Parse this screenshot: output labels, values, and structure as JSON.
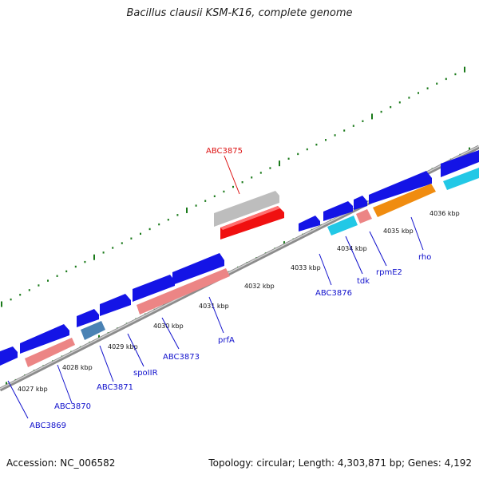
{
  "title": "Bacillus clausii KSM-K16, complete genome",
  "accession": "Accession: NC_006582",
  "summary": "Topology: circular; Length: 4,303,871 bp; Genes: 4,192",
  "colors": {
    "backbone": "#8c8c8c",
    "tick": "#1a7a1a",
    "label_default": "#1010cc",
    "label_selected": "#dd1111",
    "gene_blue": "#1414e6",
    "gene_pink": "#ec8585",
    "gene_cyan": "#22c8e6",
    "gene_orange": "#f08c10",
    "gene_steel": "#4a82b4",
    "gene_gray": "#bdbdbd",
    "gene_red": "#f01010"
  },
  "scale_labels": [
    "4027 kbp",
    "4028 kbp",
    "4029 kbp",
    "4030 kbp",
    "4031 kbp",
    "4032 kbp",
    "4033 kbp",
    "4034 kbp",
    "4035 kbp",
    "4036 kbp"
  ],
  "genes": [
    {
      "label": "ABC3869"
    },
    {
      "label": "ABC3870"
    },
    {
      "label": "ABC3871"
    },
    {
      "label": "spoIIR"
    },
    {
      "label": "ABC3873"
    },
    {
      "label": "prfA"
    },
    {
      "label": "ABC3876"
    },
    {
      "label": "tdk"
    },
    {
      "label": "rpmE2"
    },
    {
      "label": "rho"
    },
    {
      "label": "ABC3875"
    }
  ]
}
